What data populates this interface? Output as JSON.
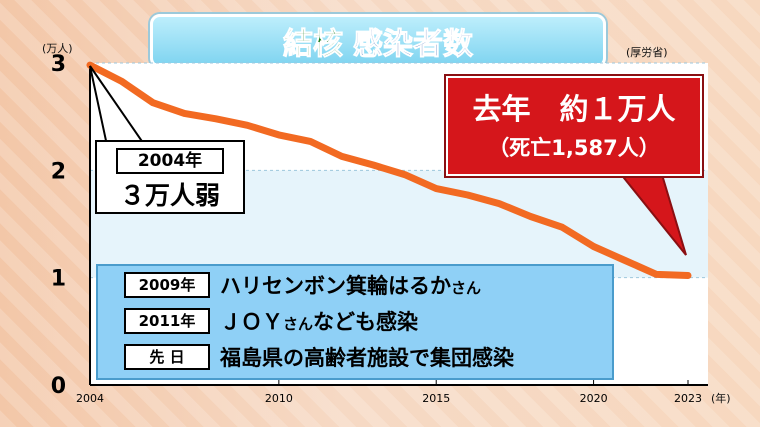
{
  "title": {
    "part1": "結核",
    "part2": "感染者数"
  },
  "source": "(厚労省)",
  "chart_data": {
    "type": "line",
    "yunit": "(万人)",
    "xunit": "(年)",
    "x": [
      2004,
      2005,
      2006,
      2007,
      2008,
      2009,
      2010,
      2011,
      2012,
      2013,
      2014,
      2015,
      2016,
      2017,
      2018,
      2019,
      2020,
      2021,
      2022,
      2023
    ],
    "values": [
      2.98,
      2.83,
      2.63,
      2.53,
      2.48,
      2.42,
      2.33,
      2.27,
      2.13,
      2.05,
      1.96,
      1.83,
      1.77,
      1.69,
      1.57,
      1.47,
      1.29,
      1.16,
      1.03,
      1.02
    ],
    "xticks": [
      "2004",
      "2010",
      "2015",
      "2020",
      "2023"
    ],
    "xtick_values": [
      2004,
      2010,
      2015,
      2020,
      2023
    ],
    "yticks": [
      "0",
      "1",
      "2",
      "3"
    ],
    "ytick_values": [
      0,
      1,
      2,
      3
    ],
    "xlim": [
      2004,
      2023
    ],
    "ylim": [
      0,
      3
    ],
    "grid": true,
    "line_color": "#f26a22"
  },
  "callout_2004": {
    "year": "2004年",
    "text": "３万人弱"
  },
  "callout_last": {
    "line1": "去年　約１万人",
    "line2": "（死亡1,587人）"
  },
  "events": [
    {
      "tag": "2009年",
      "main": "ハリセンボン箕輪はるか",
      "suffix": "さん"
    },
    {
      "tag": "2011年",
      "main": "ＪＯＹ",
      "suffix": "さん",
      "rest": "なども感染"
    },
    {
      "tag": "先 日",
      "main": "福島県の高齢者施設で集団感染",
      "suffix": ""
    }
  ]
}
